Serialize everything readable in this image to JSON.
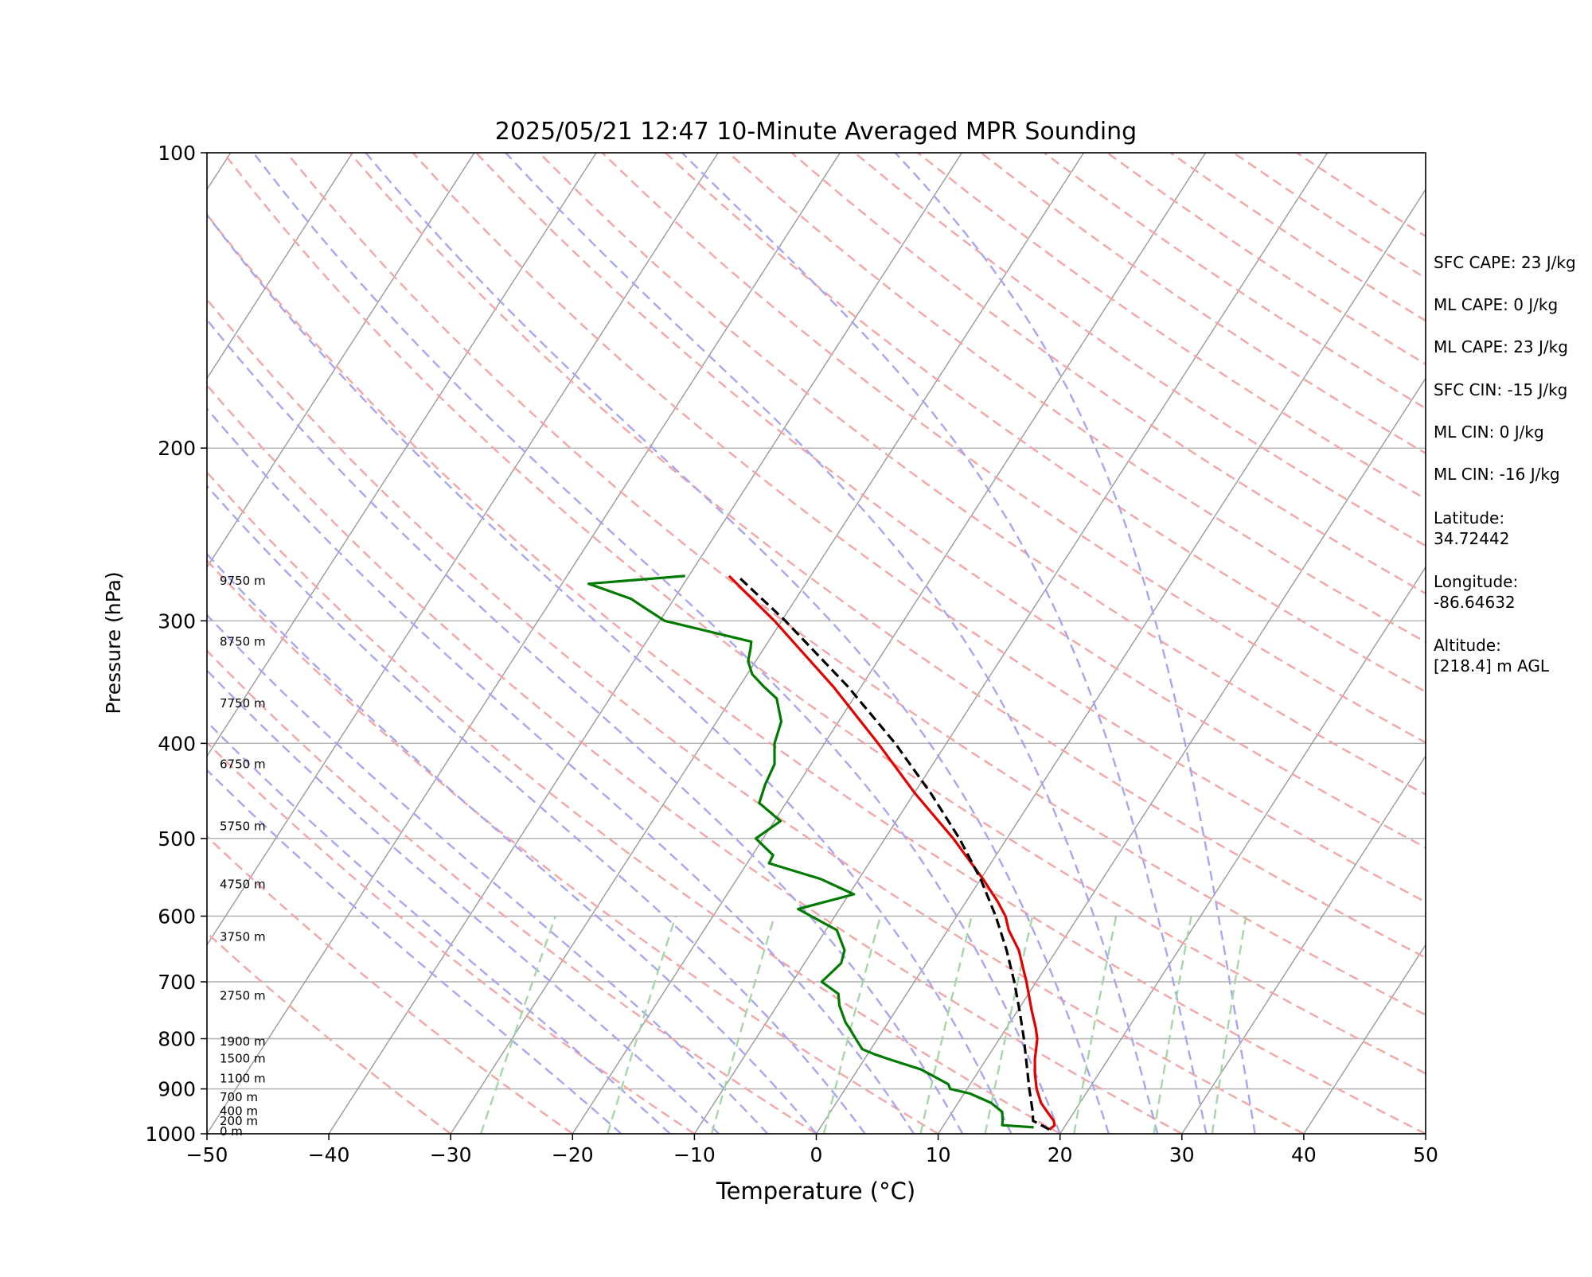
{
  "chart_data": {
    "type": "line",
    "title": "2025/05/21 12:47 10-Minute Averaged MPR Sounding",
    "xlabel": "Temperature (°C)",
    "ylabel": "Pressure (hPa)",
    "xlim": [
      -50,
      50
    ],
    "ylim": [
      1000,
      100
    ],
    "y_scale": "log",
    "x_ticks": [
      "−50",
      "−40",
      "−30",
      "−20",
      "−10",
      "0",
      "10",
      "20",
      "30",
      "40",
      "50"
    ],
    "y_ticks": [
      {
        "p": 100,
        "label": "100"
      },
      {
        "p": 200,
        "label": "200"
      },
      {
        "p": 300,
        "label": "300"
      },
      {
        "p": 400,
        "label": "400"
      },
      {
        "p": 500,
        "label": "500"
      },
      {
        "p": 600,
        "label": "600"
      },
      {
        "p": 700,
        "label": "700"
      },
      {
        "p": 800,
        "label": "800"
      },
      {
        "p": 900,
        "label": "900"
      },
      {
        "p": 1000,
        "label": "1000"
      }
    ],
    "skew": true,
    "background_lines": [
      "dry adiabats",
      "moist adiabats",
      "mixing ratio lines",
      "isotherms"
    ],
    "colors": {
      "temperature": "#e00000",
      "dewpoint": "#007a00",
      "parcel": "#000000",
      "dry_adiabat": "#f4a6a6",
      "moist_adiabat": "#a6a6f2",
      "mixing_ratio": "#a6d6a6",
      "isotherm": "#9a9a9a",
      "isobar": "#b0b0b0"
    },
    "series": [
      {
        "key": "temperature",
        "line_style": "solid",
        "points": [
          [
            990,
            18.9
          ],
          [
            980,
            19.1
          ],
          [
            970,
            18.8
          ],
          [
            950,
            17.8
          ],
          [
            930,
            16.8
          ],
          [
            900,
            15.7
          ],
          [
            870,
            14.8
          ],
          [
            840,
            14.0
          ],
          [
            800,
            13.1
          ],
          [
            780,
            12.4
          ],
          [
            750,
            11.2
          ],
          [
            700,
            9.2
          ],
          [
            650,
            6.9
          ],
          [
            620,
            5.0
          ],
          [
            600,
            4.0
          ],
          [
            580,
            2.6
          ],
          [
            550,
            0.2
          ],
          [
            500,
            -4.4
          ],
          [
            450,
            -9.9
          ],
          [
            400,
            -15.6
          ],
          [
            350,
            -22.3
          ],
          [
            300,
            -30.6
          ],
          [
            280,
            -34.6
          ],
          [
            270,
            -36.7
          ]
        ]
      },
      {
        "key": "dewpoint",
        "line_style": "solid",
        "points": [
          [
            985,
            17.5
          ],
          [
            980,
            14.8
          ],
          [
            970,
            14.6
          ],
          [
            950,
            14.1
          ],
          [
            930,
            12.7
          ],
          [
            910,
            10.5
          ],
          [
            900,
            8.6
          ],
          [
            890,
            8.2
          ],
          [
            860,
            5.2
          ],
          [
            840,
            2.1
          ],
          [
            830,
            0.6
          ],
          [
            820,
            -0.7
          ],
          [
            800,
            -1.8
          ],
          [
            780,
            -2.9
          ],
          [
            770,
            -3.5
          ],
          [
            740,
            -4.9
          ],
          [
            720,
            -5.6
          ],
          [
            700,
            -7.6
          ],
          [
            670,
            -7.0
          ],
          [
            650,
            -7.4
          ],
          [
            620,
            -9.1
          ],
          [
            590,
            -13.4
          ],
          [
            570,
            -9.6
          ],
          [
            550,
            -13.1
          ],
          [
            530,
            -18.2
          ],
          [
            520,
            -18.3
          ],
          [
            500,
            -20.6
          ],
          [
            480,
            -19.5
          ],
          [
            460,
            -22.2
          ],
          [
            440,
            -22.7
          ],
          [
            420,
            -23.0
          ],
          [
            400,
            -24.1
          ],
          [
            380,
            -24.7
          ],
          [
            360,
            -26.3
          ],
          [
            350,
            -28.0
          ],
          [
            340,
            -29.6
          ],
          [
            330,
            -30.6
          ],
          [
            320,
            -31.1
          ],
          [
            315,
            -31.4
          ],
          [
            300,
            -39.6
          ],
          [
            290,
            -42.2
          ],
          [
            285,
            -43.5
          ],
          [
            275,
            -47.8
          ],
          [
            270,
            -40.3
          ]
        ]
      },
      {
        "key": "parcel",
        "line_style": "dashed",
        "points": [
          [
            990,
            18.9
          ],
          [
            970,
            17.1
          ],
          [
            950,
            16.6
          ],
          [
            900,
            15.1
          ],
          [
            850,
            13.6
          ],
          [
            800,
            12.0
          ],
          [
            750,
            10.2
          ],
          [
            700,
            8.2
          ],
          [
            650,
            5.9
          ],
          [
            600,
            3.2
          ],
          [
            550,
            0.0
          ],
          [
            500,
            -3.9
          ],
          [
            450,
            -8.6
          ],
          [
            400,
            -14.2
          ],
          [
            350,
            -21.1
          ],
          [
            300,
            -29.7
          ],
          [
            270,
            -36.0
          ]
        ]
      }
    ],
    "height_labels": [
      {
        "p": 994,
        "label": "0 m"
      },
      {
        "p": 971,
        "label": "200 m"
      },
      {
        "p": 948,
        "label": "400 m"
      },
      {
        "p": 918,
        "label": "700 m"
      },
      {
        "p": 878,
        "label": "1100 m"
      },
      {
        "p": 838,
        "label": "1500 m"
      },
      {
        "p": 805,
        "label": "1900 m"
      },
      {
        "p": 723,
        "label": "2750 m"
      },
      {
        "p": 630,
        "label": "3750 m"
      },
      {
        "p": 557,
        "label": "4750 m"
      },
      {
        "p": 486,
        "label": "5750 m"
      },
      {
        "p": 420,
        "label": "6750 m"
      },
      {
        "p": 364,
        "label": "7750 m"
      },
      {
        "p": 315,
        "label": "8750 m"
      },
      {
        "p": 273,
        "label": "9750 m"
      }
    ]
  },
  "stats": [
    "SFC CAPE: 23 J/kg",
    "ML CAPE: 0 J/kg",
    "ML CAPE: 23 J/kg",
    "SFC CIN: -15 J/kg",
    "ML CIN: 0 J/kg",
    "ML CIN: -16 J/kg",
    "Latitude:",
    "34.72442",
    "Longitude:",
    "-86.64632",
    "Altitude:",
    "[218.4] m AGL"
  ]
}
